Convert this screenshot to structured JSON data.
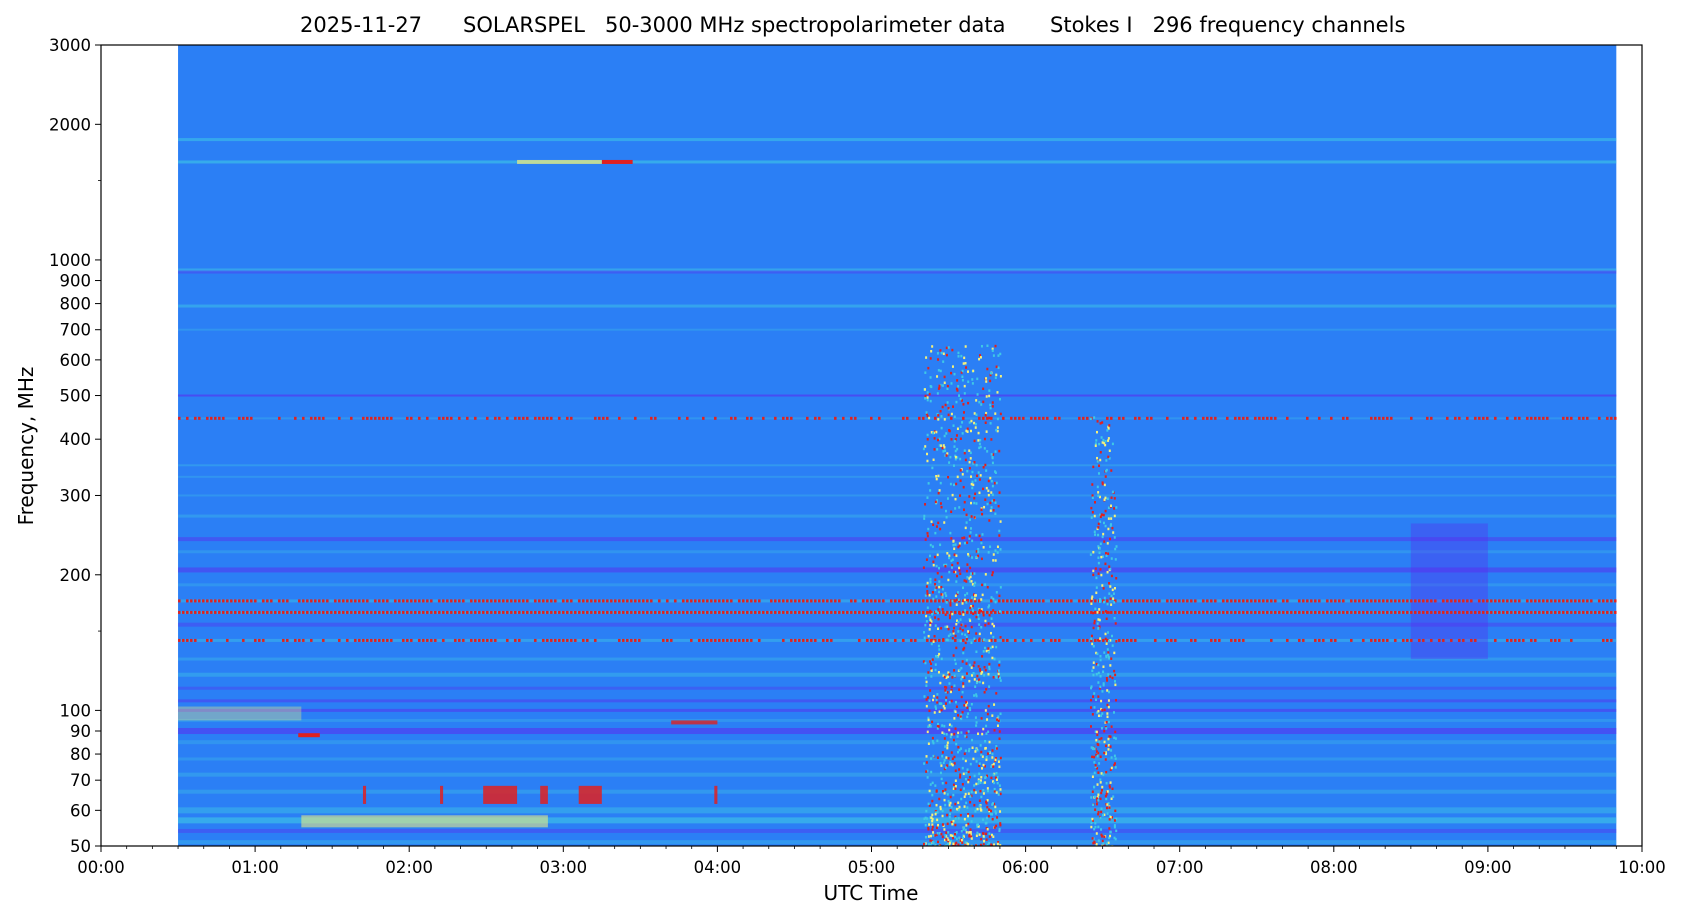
{
  "title_parts": [
    "2025-11-27",
    "SOLARSPEL   50-3000 MHz spectropolarimeter data",
    "Stokes I   296 frequency channels"
  ],
  "chart_data": {
    "type": "heatmap",
    "title": "2025-11-27      SOLARSPEL   50-3000 MHz spectropolarimeter data      Stokes I   296 frequency channels",
    "xlabel": "UTC Time",
    "ylabel": "Frequency, MHz",
    "xlim": [
      "00:00",
      "10:00"
    ],
    "ylim": [
      50,
      3000
    ],
    "yscale": "log",
    "xticks": [
      "00:00",
      "01:00",
      "02:00",
      "03:00",
      "04:00",
      "05:00",
      "06:00",
      "07:00",
      "08:00",
      "09:00",
      "10:00"
    ],
    "yticks": [
      50,
      60,
      70,
      80,
      90,
      100,
      200,
      300,
      400,
      500,
      600,
      700,
      800,
      900,
      1000,
      2000,
      3000
    ],
    "colormap": "rainbow",
    "colors": {
      "background": "#2b7ff5",
      "low": "#5a2cf0",
      "mid": "#3ec8e6",
      "high": "#e02020",
      "peak": "#f5f07a"
    },
    "data_time_range": [
      "00:30",
      "09:50"
    ],
    "grid": false,
    "bursts": [
      {
        "start": "05:20",
        "end": "05:50",
        "fmin": 50,
        "fmax": 650
      },
      {
        "start": "06:25",
        "end": "06:35",
        "fmin": 50,
        "fmax": 450
      }
    ],
    "strong_rfi_channels_mhz": [
      175,
      165,
      143,
      1650,
      445
    ]
  }
}
